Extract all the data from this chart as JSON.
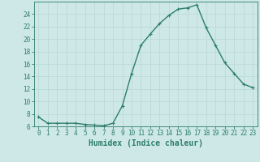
{
  "x": [
    0,
    1,
    2,
    3,
    4,
    5,
    6,
    7,
    8,
    9,
    10,
    11,
    12,
    13,
    14,
    15,
    16,
    17,
    18,
    19,
    20,
    21,
    22,
    23
  ],
  "y": [
    7.5,
    6.5,
    6.5,
    6.5,
    6.5,
    6.3,
    6.2,
    6.1,
    6.5,
    9.3,
    14.5,
    19.0,
    20.8,
    22.5,
    23.8,
    24.8,
    25.0,
    25.5,
    21.8,
    19.0,
    16.2,
    14.5,
    12.8,
    12.2
  ],
  "line_color": "#2d7d6e",
  "marker": "+",
  "markersize": 3,
  "linewidth": 1.0,
  "markeredgewidth": 0.8,
  "xlabel": "Humidex (Indice chaleur)",
  "xlim": [
    -0.5,
    23.5
  ],
  "ylim": [
    6,
    26
  ],
  "yticks": [
    6,
    8,
    10,
    12,
    14,
    16,
    18,
    20,
    22,
    24
  ],
  "xticks": [
    0,
    1,
    2,
    3,
    4,
    5,
    6,
    7,
    8,
    9,
    10,
    11,
    12,
    13,
    14,
    15,
    16,
    17,
    18,
    19,
    20,
    21,
    22,
    23
  ],
  "bg_color": "#cde8e6",
  "grid_color": "#b8d8d6",
  "spine_color": "#2d7d6e",
  "tick_label_color": "#2d7d6e",
  "xlabel_fontsize": 7,
  "tick_fontsize": 5.5
}
